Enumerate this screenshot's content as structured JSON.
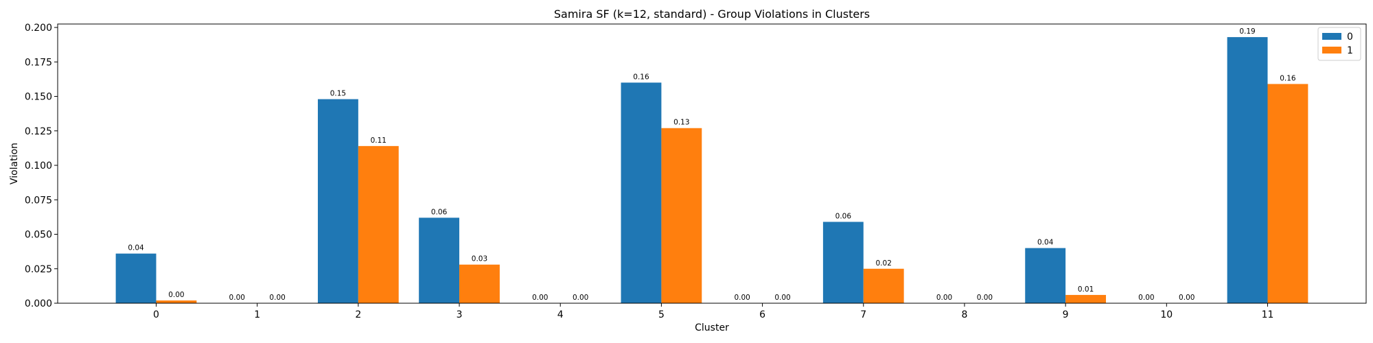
{
  "chart_data": {
    "type": "bar",
    "title": "Samira SF (k=12, standard) - Group Violations in Clusters",
    "xlabel": "Cluster",
    "ylabel": "Violation",
    "categories": [
      "0",
      "1",
      "2",
      "3",
      "4",
      "5",
      "6",
      "7",
      "8",
      "9",
      "10",
      "11"
    ],
    "ylim": [
      0,
      0.2025
    ],
    "yticks": [
      "0.000",
      "0.025",
      "0.050",
      "0.075",
      "0.100",
      "0.125",
      "0.150",
      "0.175",
      "0.200"
    ],
    "series": [
      {
        "name": "0",
        "color": "#1f77b4",
        "values": [
          0.036,
          0.0,
          0.148,
          0.062,
          0.0,
          0.16,
          0.0,
          0.059,
          0.0,
          0.04,
          0.0,
          0.193
        ],
        "labels": [
          "0.04",
          "0.00",
          "0.15",
          "0.06",
          "0.00",
          "0.16",
          "0.00",
          "0.06",
          "0.00",
          "0.04",
          "0.00",
          "0.19"
        ]
      },
      {
        "name": "1",
        "color": "#ff7f0e",
        "values": [
          0.002,
          0.0,
          0.114,
          0.028,
          0.0,
          0.127,
          0.0,
          0.025,
          0.0,
          0.006,
          0.0,
          0.159
        ],
        "labels": [
          "0.00",
          "0.00",
          "0.11",
          "0.03",
          "0.00",
          "0.13",
          "0.00",
          "0.02",
          "0.00",
          "0.01",
          "0.00",
          "0.16"
        ]
      }
    ],
    "legend": "top-right",
    "grid": false
  }
}
